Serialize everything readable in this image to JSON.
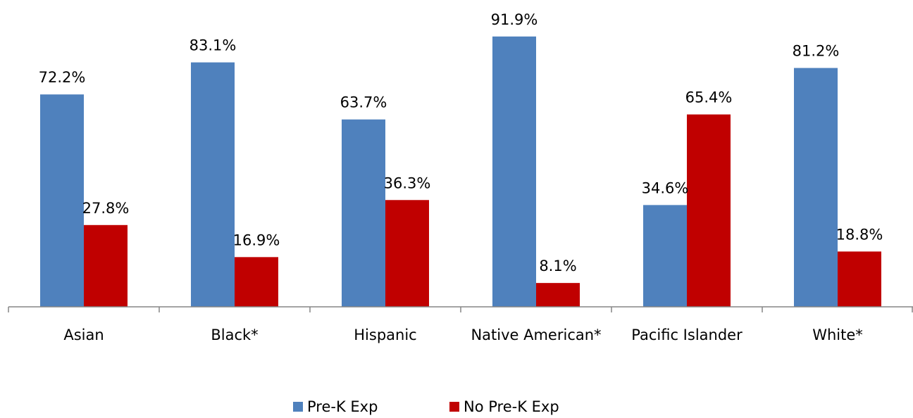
{
  "chart_data": {
    "type": "bar",
    "categories": [
      "Asian",
      "Black*",
      "Hispanic",
      "Native American*",
      "Pacific Islander",
      "White*"
    ],
    "series": [
      {
        "name": "Pre-K Exp",
        "color": "#4f81bd",
        "values": [
          72.2,
          83.1,
          63.7,
          91.9,
          34.6,
          81.2
        ],
        "labels": [
          "72.2%",
          "83.1%",
          "63.7%",
          "91.9%",
          "34.6%",
          "81.2%"
        ]
      },
      {
        "name": "No Pre-K Exp",
        "color": "#c00000",
        "values": [
          27.8,
          16.9,
          36.3,
          8.1,
          65.4,
          18.8
        ],
        "labels": [
          "27.8%",
          "16.9%",
          "36.3%",
          "8.1%",
          "65.4%",
          "18.8%"
        ]
      }
    ],
    "ylim": [
      0,
      100
    ],
    "grid": false,
    "legend": "bottom-center"
  }
}
